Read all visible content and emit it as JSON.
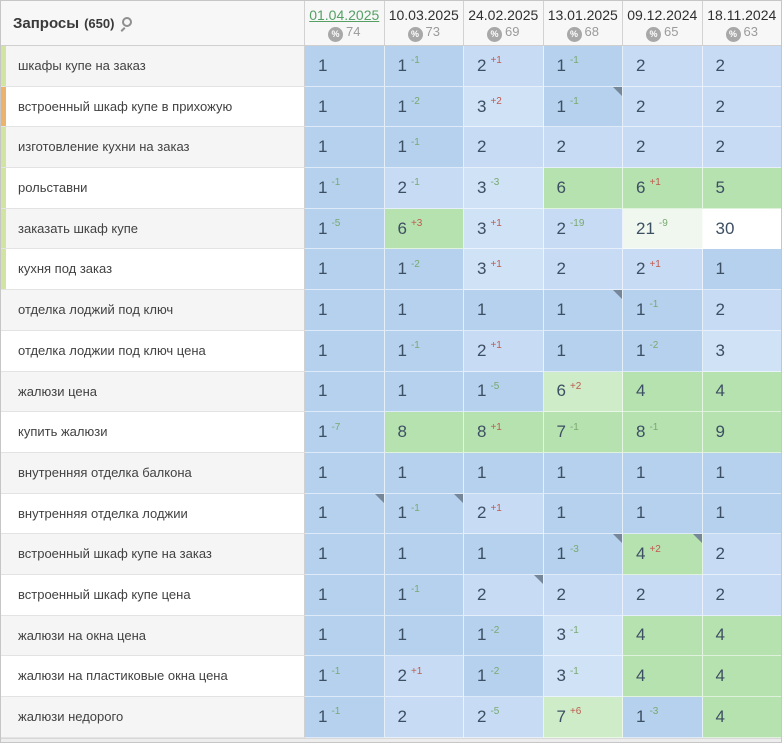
{
  "header": {
    "queries_label": "Запросы",
    "queries_count": "(650)",
    "search_icon": "magnifier-icon",
    "percent_symbol": "%",
    "columns": [
      {
        "date": "01.04.2025",
        "visibility": "74",
        "active": true
      },
      {
        "date": "10.03.2025",
        "visibility": "73",
        "active": false
      },
      {
        "date": "24.02.2025",
        "visibility": "69",
        "active": false
      },
      {
        "date": "13.01.2025",
        "visibility": "68",
        "active": false
      },
      {
        "date": "09.12.2024",
        "visibility": "65",
        "active": false
      },
      {
        "date": "18.11.2024",
        "visibility": "63",
        "active": false
      }
    ]
  },
  "palette": {
    "b1": "#b5d1ed",
    "b2": "#c7dcf4",
    "b3": "#d0e2f6",
    "g1": "#b6e2b0",
    "g2": "#cdecc7",
    "wg": "#eff7ef",
    "w": "#ffffff"
  },
  "stripe_colors": {
    "green": "#d2e4a2",
    "orange": "#ecb36d"
  },
  "accents": {
    "active_date": "#55a065",
    "delta_down": "#79a96f",
    "delta_up": "#c05a50",
    "position_text": "#3d4f63",
    "note_marker": "#76879a"
  },
  "rows": [
    {
      "keyword": "шкафы купе на заказ",
      "stripe": "green",
      "cells": [
        {
          "pos": "1",
          "tone": "b1"
        },
        {
          "pos": "1",
          "delta": "-1",
          "tone": "b1"
        },
        {
          "pos": "2",
          "delta": "+1",
          "tone": "b2"
        },
        {
          "pos": "1",
          "delta": "-1",
          "tone": "b1"
        },
        {
          "pos": "2",
          "tone": "b2"
        },
        {
          "pos": "2",
          "tone": "b2"
        }
      ]
    },
    {
      "keyword": "встроенный шкаф купе в прихожую",
      "stripe": "orange",
      "cells": [
        {
          "pos": "1",
          "tone": "b1"
        },
        {
          "pos": "1",
          "delta": "-2",
          "tone": "b1"
        },
        {
          "pos": "3",
          "delta": "+2",
          "tone": "b3"
        },
        {
          "pos": "1",
          "delta": "-1",
          "tone": "b1",
          "marker": true
        },
        {
          "pos": "2",
          "tone": "b2"
        },
        {
          "pos": "2",
          "tone": "b2"
        }
      ]
    },
    {
      "keyword": "изготовление кухни на заказ",
      "stripe": "green",
      "cells": [
        {
          "pos": "1",
          "tone": "b1"
        },
        {
          "pos": "1",
          "delta": "-1",
          "tone": "b1"
        },
        {
          "pos": "2",
          "tone": "b2"
        },
        {
          "pos": "2",
          "tone": "b2"
        },
        {
          "pos": "2",
          "tone": "b2"
        },
        {
          "pos": "2",
          "tone": "b2"
        }
      ]
    },
    {
      "keyword": "рольставни",
      "stripe": "green",
      "cells": [
        {
          "pos": "1",
          "delta": "-1",
          "tone": "b1"
        },
        {
          "pos": "2",
          "delta": "-1",
          "tone": "b2"
        },
        {
          "pos": "3",
          "delta": "-3",
          "tone": "b3"
        },
        {
          "pos": "6",
          "tone": "g1"
        },
        {
          "pos": "6",
          "delta": "+1",
          "tone": "g1"
        },
        {
          "pos": "5",
          "tone": "g1"
        }
      ]
    },
    {
      "keyword": "заказать шкаф купе",
      "stripe": "green",
      "cells": [
        {
          "pos": "1",
          "delta": "-5",
          "tone": "b1"
        },
        {
          "pos": "6",
          "delta": "+3",
          "tone": "g1"
        },
        {
          "pos": "3",
          "delta": "+1",
          "tone": "b3"
        },
        {
          "pos": "2",
          "delta": "-19",
          "tone": "b2"
        },
        {
          "pos": "21",
          "delta": "-9",
          "tone": "wg"
        },
        {
          "pos": "30",
          "tone": "w"
        }
      ]
    },
    {
      "keyword": "кухня под заказ",
      "stripe": "green",
      "cells": [
        {
          "pos": "1",
          "tone": "b1"
        },
        {
          "pos": "1",
          "delta": "-2",
          "tone": "b1"
        },
        {
          "pos": "3",
          "delta": "+1",
          "tone": "b3"
        },
        {
          "pos": "2",
          "tone": "b2"
        },
        {
          "pos": "2",
          "delta": "+1",
          "tone": "b2"
        },
        {
          "pos": "1",
          "tone": "b1"
        }
      ]
    },
    {
      "keyword": "отделка лоджий под ключ",
      "stripe": null,
      "cells": [
        {
          "pos": "1",
          "tone": "b1"
        },
        {
          "pos": "1",
          "tone": "b1"
        },
        {
          "pos": "1",
          "tone": "b1"
        },
        {
          "pos": "1",
          "tone": "b1",
          "marker": true
        },
        {
          "pos": "1",
          "delta": "-1",
          "tone": "b1"
        },
        {
          "pos": "2",
          "tone": "b2"
        }
      ]
    },
    {
      "keyword": "отделка лоджии под ключ цена",
      "stripe": null,
      "cells": [
        {
          "pos": "1",
          "tone": "b1"
        },
        {
          "pos": "1",
          "delta": "-1",
          "tone": "b1"
        },
        {
          "pos": "2",
          "delta": "+1",
          "tone": "b2"
        },
        {
          "pos": "1",
          "tone": "b1"
        },
        {
          "pos": "1",
          "delta": "-2",
          "tone": "b1"
        },
        {
          "pos": "3",
          "tone": "b3"
        }
      ]
    },
    {
      "keyword": "жалюзи цена",
      "stripe": null,
      "cells": [
        {
          "pos": "1",
          "tone": "b1"
        },
        {
          "pos": "1",
          "tone": "b1"
        },
        {
          "pos": "1",
          "delta": "-5",
          "tone": "b1"
        },
        {
          "pos": "6",
          "delta": "+2",
          "tone": "g2"
        },
        {
          "pos": "4",
          "tone": "g1"
        },
        {
          "pos": "4",
          "tone": "g1"
        }
      ]
    },
    {
      "keyword": "купить жалюзи",
      "stripe": null,
      "cells": [
        {
          "pos": "1",
          "delta": "-7",
          "tone": "b1"
        },
        {
          "pos": "8",
          "tone": "g1"
        },
        {
          "pos": "8",
          "delta": "+1",
          "tone": "g1"
        },
        {
          "pos": "7",
          "delta": "-1",
          "tone": "g1"
        },
        {
          "pos": "8",
          "delta": "-1",
          "tone": "g1"
        },
        {
          "pos": "9",
          "tone": "g1"
        }
      ]
    },
    {
      "keyword": "внутренняя отделка балкона",
      "stripe": null,
      "cells": [
        {
          "pos": "1",
          "tone": "b1"
        },
        {
          "pos": "1",
          "tone": "b1"
        },
        {
          "pos": "1",
          "tone": "b1"
        },
        {
          "pos": "1",
          "tone": "b1"
        },
        {
          "pos": "1",
          "tone": "b1"
        },
        {
          "pos": "1",
          "tone": "b1"
        }
      ]
    },
    {
      "keyword": "внутренняя отделка лоджии",
      "stripe": null,
      "cells": [
        {
          "pos": "1",
          "tone": "b1",
          "marker": true
        },
        {
          "pos": "1",
          "delta": "-1",
          "tone": "b1",
          "marker": true
        },
        {
          "pos": "2",
          "delta": "+1",
          "tone": "b2"
        },
        {
          "pos": "1",
          "tone": "b1"
        },
        {
          "pos": "1",
          "tone": "b1"
        },
        {
          "pos": "1",
          "tone": "b1"
        }
      ]
    },
    {
      "keyword": "встроенный шкаф купе на заказ",
      "stripe": null,
      "cells": [
        {
          "pos": "1",
          "tone": "b1"
        },
        {
          "pos": "1",
          "tone": "b1"
        },
        {
          "pos": "1",
          "tone": "b1"
        },
        {
          "pos": "1",
          "delta": "-3",
          "tone": "b1",
          "marker": true
        },
        {
          "pos": "4",
          "delta": "+2",
          "tone": "g1",
          "marker": true
        },
        {
          "pos": "2",
          "tone": "b2"
        }
      ]
    },
    {
      "keyword": "встроенный шкаф купе цена",
      "stripe": null,
      "cells": [
        {
          "pos": "1",
          "tone": "b1"
        },
        {
          "pos": "1",
          "delta": "-1",
          "tone": "b1"
        },
        {
          "pos": "2",
          "tone": "b2",
          "marker": true
        },
        {
          "pos": "2",
          "tone": "b2"
        },
        {
          "pos": "2",
          "tone": "b2"
        },
        {
          "pos": "2",
          "tone": "b2"
        }
      ]
    },
    {
      "keyword": "жалюзи на окна цена",
      "stripe": null,
      "cells": [
        {
          "pos": "1",
          "tone": "b1"
        },
        {
          "pos": "1",
          "tone": "b1"
        },
        {
          "pos": "1",
          "delta": "-2",
          "tone": "b1"
        },
        {
          "pos": "3",
          "delta": "-1",
          "tone": "b3"
        },
        {
          "pos": "4",
          "tone": "g1"
        },
        {
          "pos": "4",
          "tone": "g1"
        }
      ]
    },
    {
      "keyword": "жалюзи на пластиковые окна цена",
      "stripe": null,
      "cells": [
        {
          "pos": "1",
          "delta": "-1",
          "tone": "b1"
        },
        {
          "pos": "2",
          "delta": "+1",
          "tone": "b2"
        },
        {
          "pos": "1",
          "delta": "-2",
          "tone": "b1"
        },
        {
          "pos": "3",
          "delta": "-1",
          "tone": "b3"
        },
        {
          "pos": "4",
          "tone": "g1"
        },
        {
          "pos": "4",
          "tone": "g1"
        }
      ]
    },
    {
      "keyword": "жалюзи недорого",
      "stripe": null,
      "cells": [
        {
          "pos": "1",
          "delta": "-1",
          "tone": "b1"
        },
        {
          "pos": "2",
          "tone": "b2"
        },
        {
          "pos": "2",
          "delta": "-5",
          "tone": "b2"
        },
        {
          "pos": "7",
          "delta": "+6",
          "tone": "g2"
        },
        {
          "pos": "1",
          "delta": "-3",
          "tone": "b1"
        },
        {
          "pos": "4",
          "tone": "g1"
        }
      ]
    }
  ]
}
